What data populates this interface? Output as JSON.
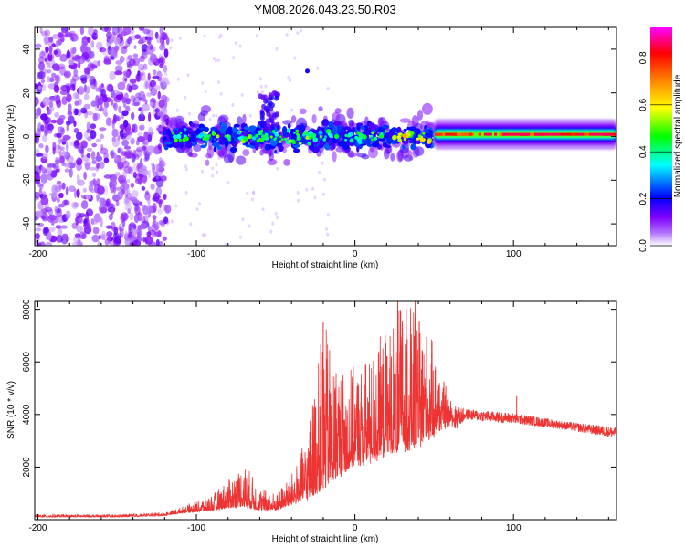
{
  "title": "YM08.2026.043.23.50.R03",
  "chart_data": [
    {
      "type": "heatmap",
      "name": "spectrogram",
      "xlabel": "Height of straight line (km)",
      "ylabel": "Frequency (Hz)",
      "xlim": [
        -202,
        165
      ],
      "ylim": [
        -50,
        50
      ],
      "xticks": [
        -200,
        -100,
        0,
        100
      ],
      "yticks": [
        -40,
        -20,
        0,
        20,
        40
      ],
      "colorbar": {
        "label": "Normalized spectral amplitude",
        "range": [
          0,
          0.93
        ],
        "ticks": [
          0.0,
          0.2,
          0.4,
          0.6,
          0.8
        ],
        "colormap": [
          "#ffffff",
          "#7f00ff",
          "#0000ff",
          "#00ffff",
          "#00ff00",
          "#ffff00",
          "#ff8000",
          "#ff0000",
          "#ff00ff"
        ]
      },
      "regions": [
        {
          "x": [
            -202,
            -118
          ],
          "description": "noise",
          "amplitude": 0.02
        },
        {
          "x": [
            -120,
            50
          ],
          "center_hz": 0,
          "width_hz": 10,
          "amplitude": 0.3
        },
        {
          "x": [
            50,
            165
          ],
          "center_hz": 1,
          "width_hz": 6,
          "amplitude": 0.7
        }
      ]
    },
    {
      "type": "line",
      "name": "snr",
      "xlabel": "Height of straight line (km)",
      "ylabel": "SNR (10 * v/v)",
      "xlim": [
        -202,
        165
      ],
      "ylim": [
        0,
        8300
      ],
      "xticks": [
        -200,
        -100,
        0,
        100
      ],
      "yticks": [
        2000,
        4000,
        6000,
        8000
      ],
      "color": "#ee3333",
      "envelope": {
        "x": [
          -202,
          -150,
          -120,
          -110,
          -100,
          -90,
          -80,
          -70,
          -60,
          -50,
          -40,
          -30,
          -20,
          -10,
          0,
          10,
          20,
          30,
          40,
          50,
          60,
          70,
          100,
          130,
          165
        ],
        "base": [
          100,
          100,
          150,
          250,
          300,
          350,
          450,
          500,
          350,
          350,
          600,
          800,
          1200,
          1700,
          2100,
          2300,
          2500,
          2700,
          2900,
          3300,
          3800,
          4000,
          3850,
          3600,
          3300
        ],
        "peak": [
          200,
          200,
          280,
          450,
          700,
          950,
          1500,
          2200,
          1200,
          1000,
          1700,
          3200,
          7500,
          5800,
          5700,
          6200,
          7200,
          8300,
          7800,
          6500,
          4400,
          4200,
          4050,
          3750,
          3500
        ]
      },
      "spikes": [
        {
          "x": -20,
          "y": 7500
        },
        {
          "x": 27,
          "y": 8300
        },
        {
          "x": 38,
          "y": 8300
        },
        {
          "x": 102,
          "y": 4700
        }
      ]
    }
  ]
}
